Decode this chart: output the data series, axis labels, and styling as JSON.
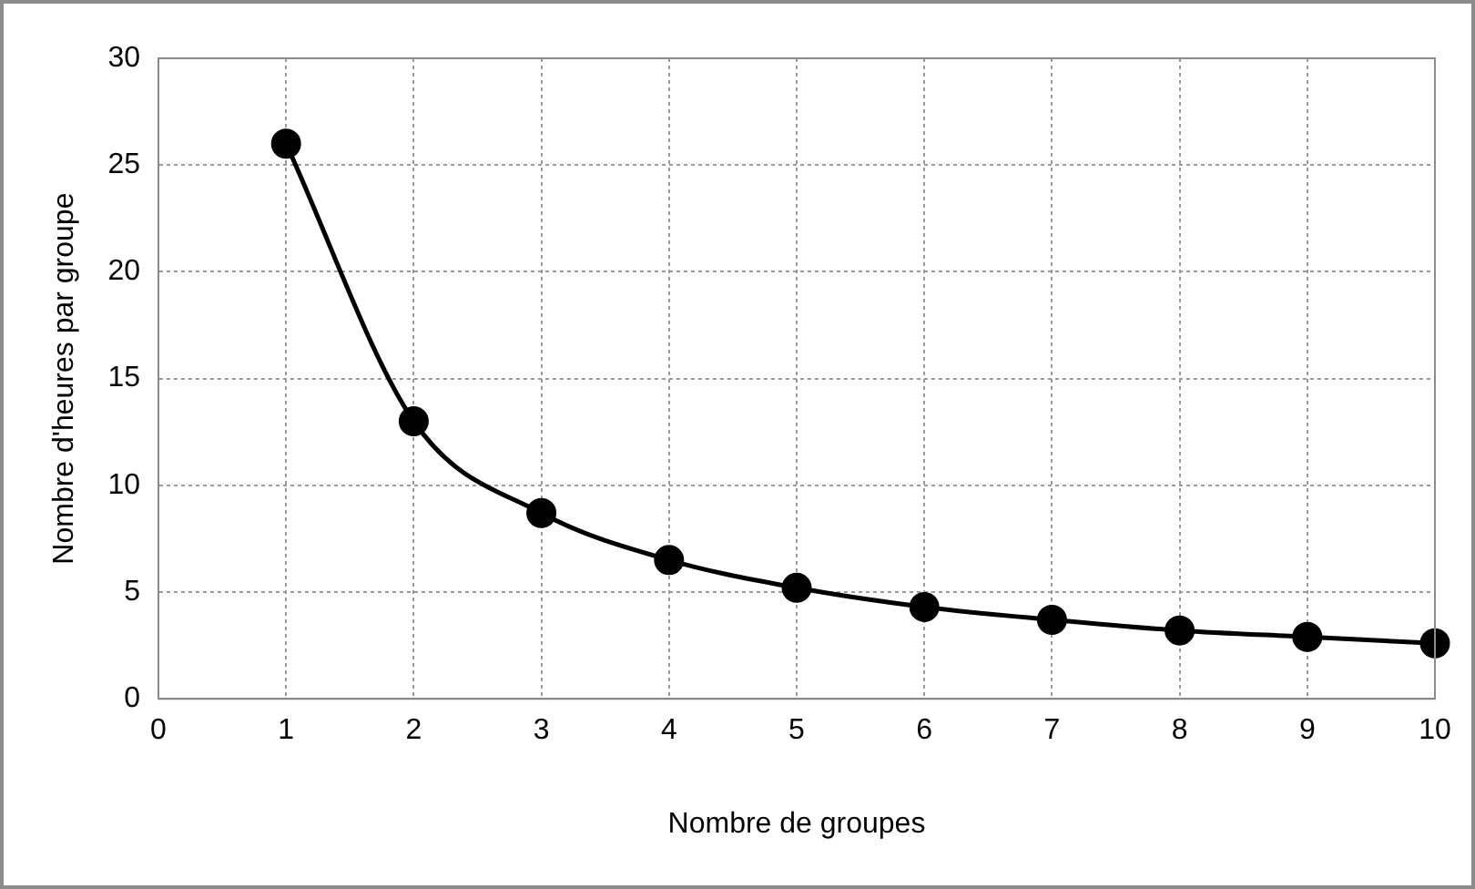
{
  "chart_data": {
    "type": "line",
    "xlabel": "Nombre de groupes",
    "ylabel": "Nombre d'heures par groupe",
    "x": [
      1,
      2,
      3,
      4,
      5,
      6,
      7,
      8,
      9,
      10
    ],
    "series": [
      {
        "color": "#000000",
        "values": [
          26,
          13,
          8.7,
          6.5,
          5.2,
          4.3,
          3.7,
          3.2,
          2.9,
          2.6
        ]
      }
    ],
    "xlim": [
      0,
      10
    ],
    "xticks": [
      0,
      1,
      2,
      3,
      4,
      5,
      6,
      7,
      8,
      9,
      10
    ],
    "ylim": [
      0,
      30
    ],
    "yticks": [
      0,
      5,
      10,
      15,
      20,
      25,
      30
    ],
    "grid": true,
    "legend": false,
    "marker": "circle",
    "line_style": "solid"
  }
}
